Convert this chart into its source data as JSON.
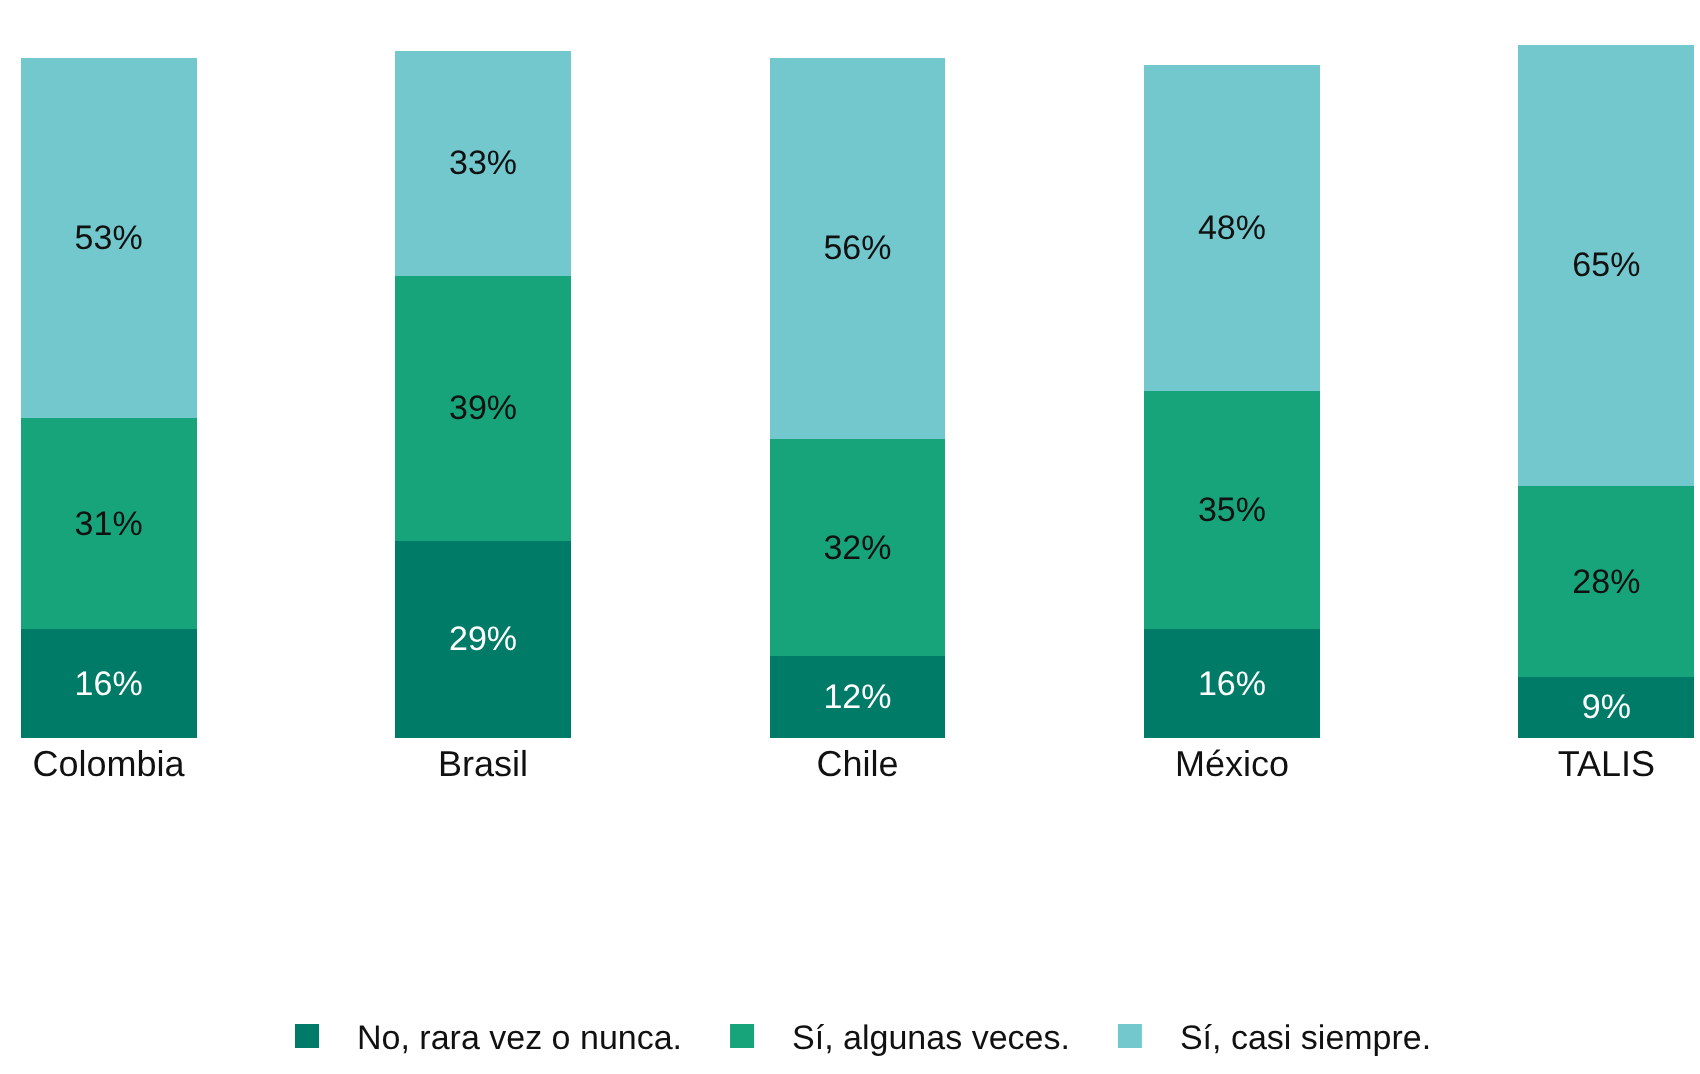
{
  "chart_data": {
    "type": "bar",
    "stacked": true,
    "legend": "bottom",
    "categories": [
      "Colombia",
      "Brasil",
      "Chile",
      "México",
      "TALIS"
    ],
    "series": [
      {
        "name": "No, rara vez o nunca.",
        "color": "#007b67",
        "values": [
          16,
          29,
          12,
          16,
          9
        ],
        "value_labels": [
          "16%",
          "29%",
          "12%",
          "16%",
          "9%"
        ]
      },
      {
        "name": "Sí, algunas veces.",
        "color": "#17a47a",
        "values": [
          31,
          39,
          32,
          35,
          28
        ],
        "value_labels": [
          "31%",
          "39%",
          "32%",
          "35%",
          "28%"
        ]
      },
      {
        "name": "Sí, casi siempre.",
        "color": "#72c8cd",
        "values": [
          53,
          33,
          56,
          48,
          65
        ],
        "value_labels": [
          "53%",
          "33%",
          "56%",
          "48%",
          "65%"
        ]
      }
    ]
  }
}
